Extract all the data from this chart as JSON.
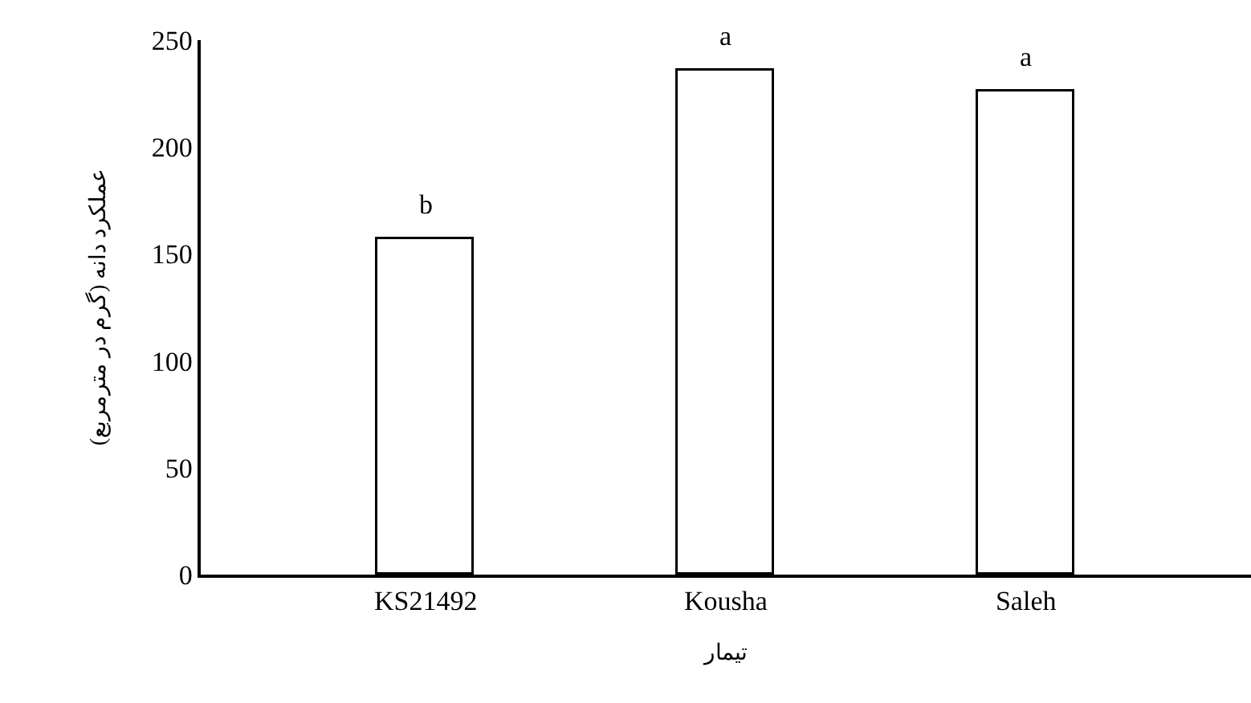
{
  "chart_data": {
    "type": "bar",
    "xlabel": "تیمار",
    "ylabel": "عملکرد دانه (گرم در مترمربع)",
    "categories": [
      "KS21492",
      "Kousha",
      "Saleh"
    ],
    "values": [
      157,
      236,
      226
    ],
    "color": "#ffffff",
    "ylim": [
      0,
      250
    ],
    "yticks": [
      0,
      50,
      100,
      150,
      200,
      250
    ],
    "legend": false,
    "annotations": [
      {
        "text": "b",
        "x": "KS21492",
        "y": 157
      },
      {
        "text": "a",
        "x": "Kousha",
        "y": 236
      },
      {
        "text": "a",
        "x": "Saleh",
        "y": 226
      }
    ]
  }
}
